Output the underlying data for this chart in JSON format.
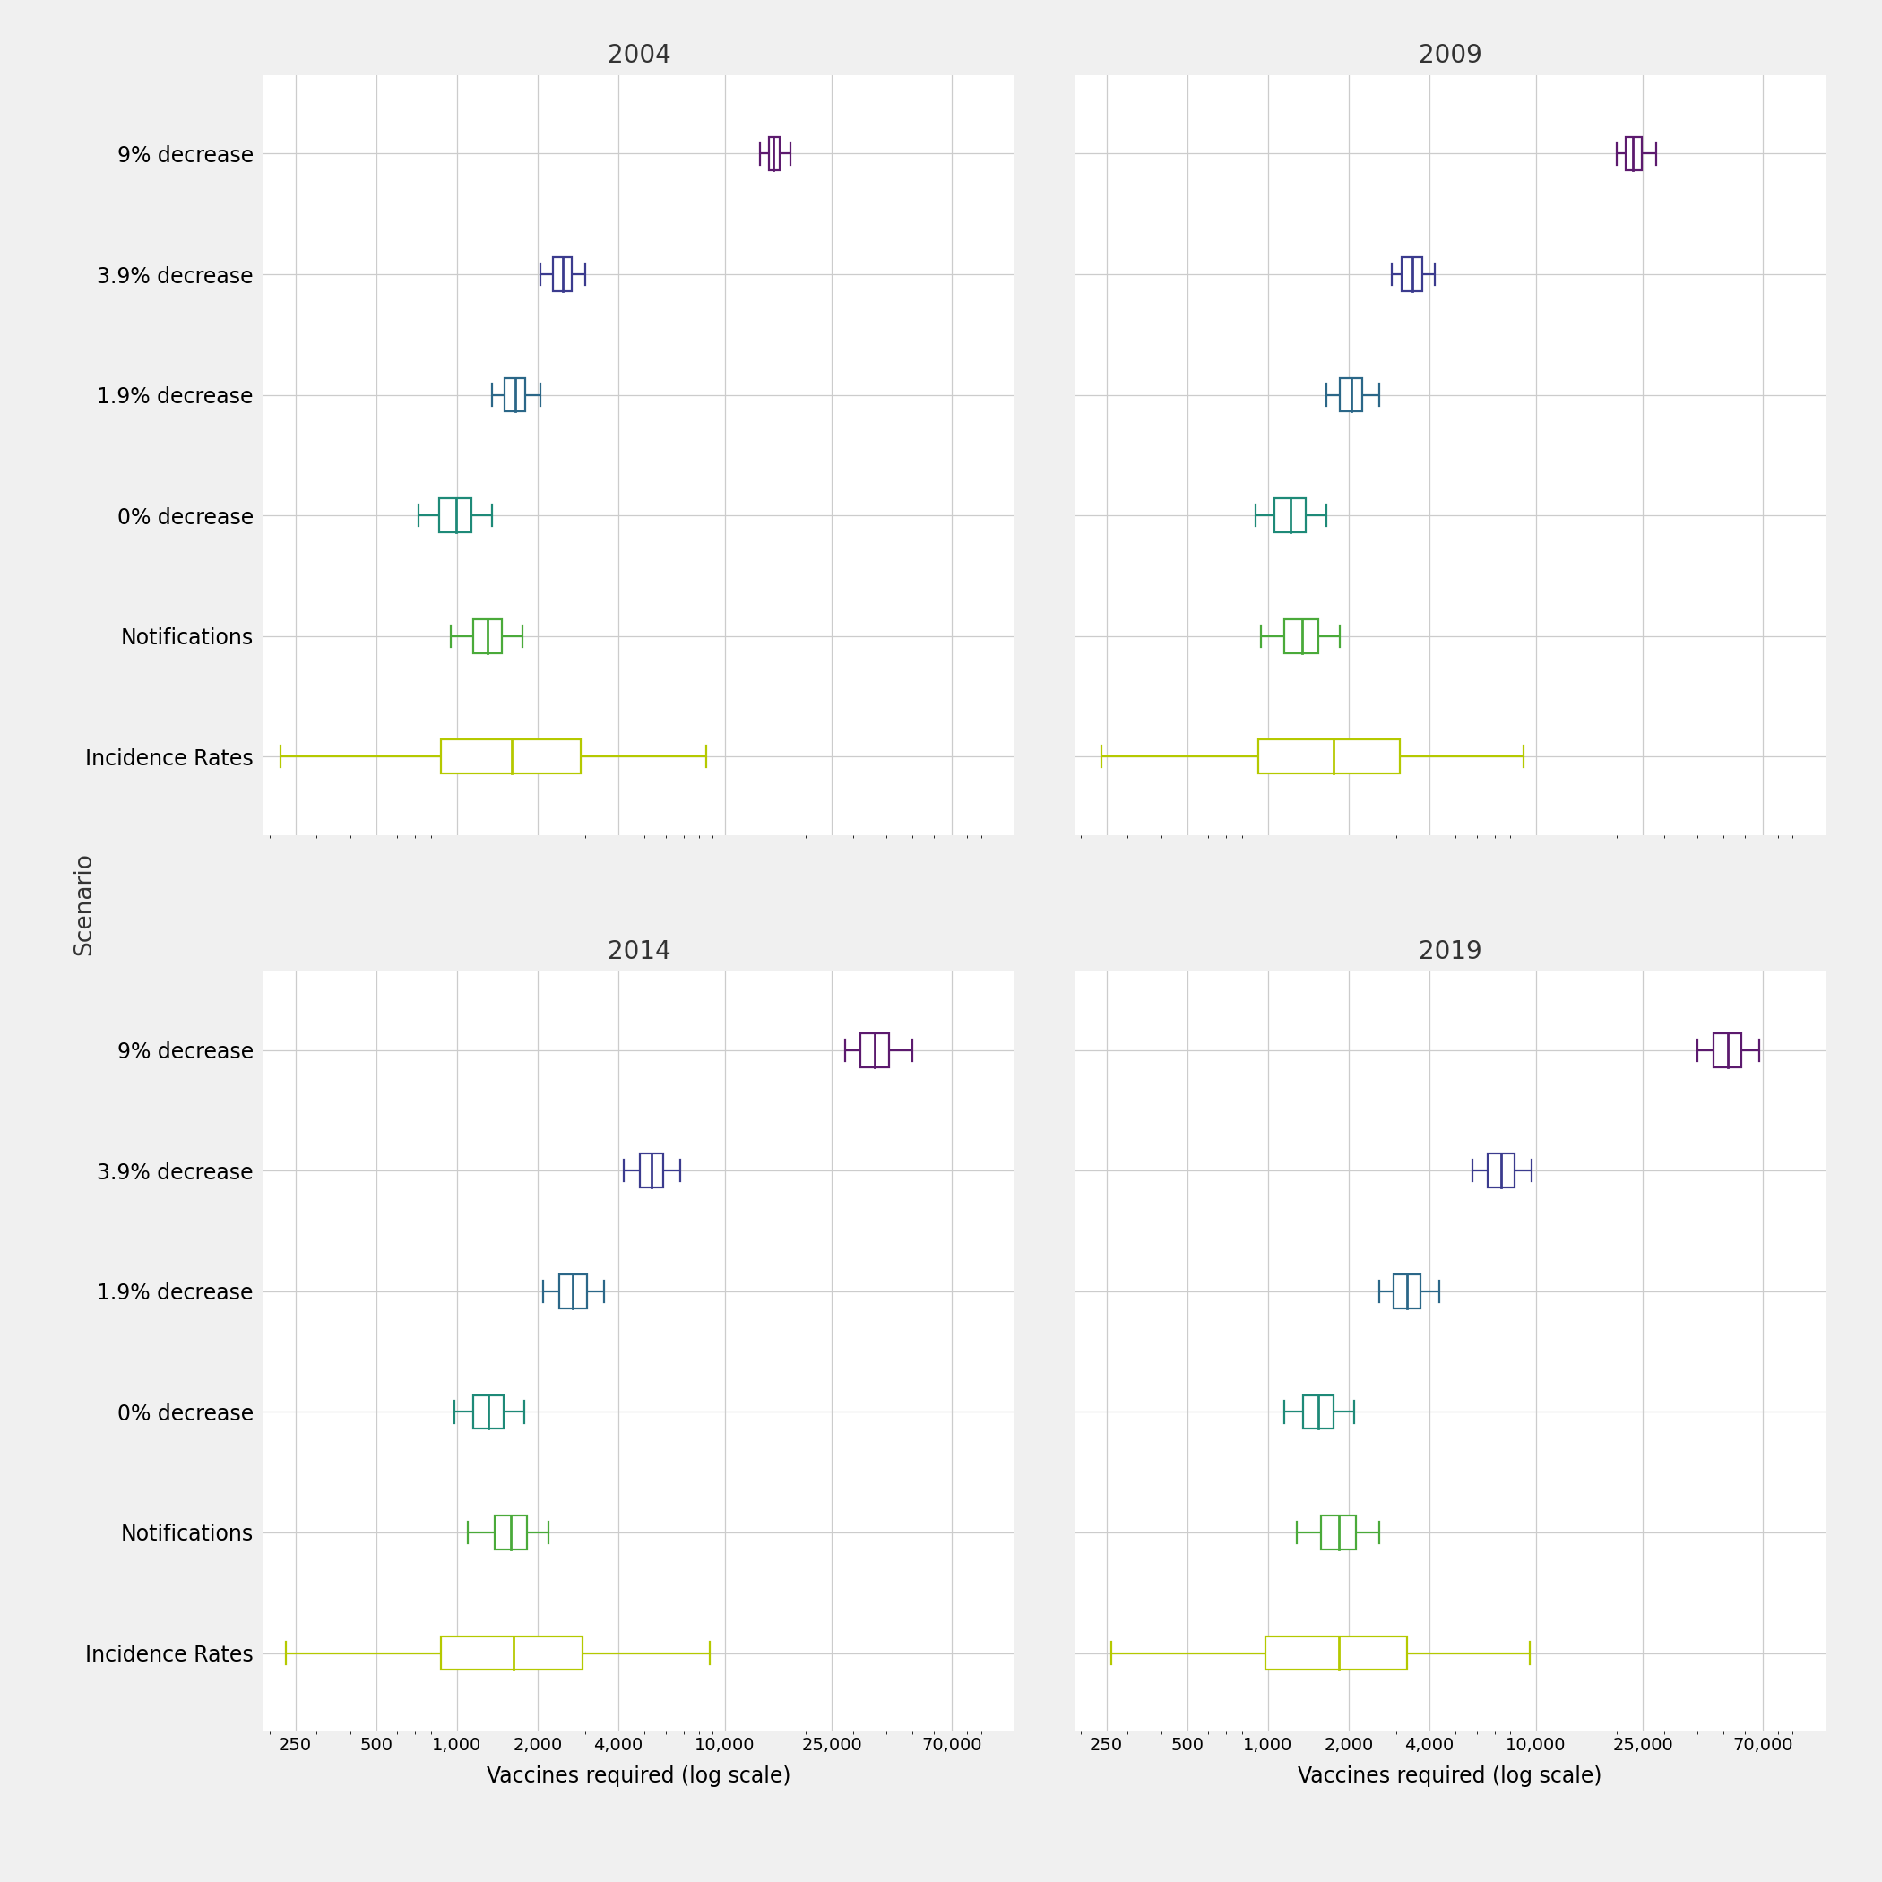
{
  "years": [
    "2004",
    "2009",
    "2014",
    "2019"
  ],
  "scenarios": [
    "9% decrease",
    "3.9% decrease",
    "1.9% decrease",
    "0% decrease",
    "Notifications",
    "Incidence Rates"
  ],
  "colors": [
    "#5c1a6e",
    "#3b3b8e",
    "#2b6788",
    "#1e8a78",
    "#4aaa3a",
    "#b5c900"
  ],
  "background_color": "#f0f0f0",
  "panel_background": "#ffffff",
  "grid_color": "#cccccc",
  "title_fontsize": 20,
  "label_fontsize": 17,
  "tick_fontsize": 14,
  "ylabel": "Scenario",
  "xlabel": "Vaccines required (log scale)",
  "xlim_log": [
    190,
    120000
  ],
  "xticks": [
    250,
    500,
    1000,
    2000,
    4000,
    10000,
    25000,
    70000
  ],
  "xticklabels": [
    "250",
    "500",
    "1,000",
    "2,000",
    "4,000",
    "10,000",
    "25,000",
    "70,000"
  ],
  "boxplot_data": {
    "2004": {
      "9% decrease": {
        "whislo": 13500,
        "q1": 14600,
        "med": 15200,
        "q3": 16000,
        "whishi": 17500
      },
      "3.9% decrease": {
        "whislo": 2050,
        "q1": 2280,
        "med": 2480,
        "q3": 2680,
        "whishi": 3000
      },
      "1.9% decrease": {
        "whislo": 1350,
        "q1": 1500,
        "med": 1650,
        "q3": 1800,
        "whishi": 2050
      },
      "0% decrease": {
        "whislo": 720,
        "q1": 860,
        "med": 990,
        "q3": 1130,
        "whishi": 1350
      },
      "Notifications": {
        "whislo": 950,
        "q1": 1150,
        "med": 1300,
        "q3": 1470,
        "whishi": 1750
      },
      "Incidence Rates": {
        "whislo": 220,
        "q1": 870,
        "med": 1600,
        "q3": 2900,
        "whishi": 8500
      }
    },
    "2009": {
      "9% decrease": {
        "whislo": 20000,
        "q1": 21500,
        "med": 23000,
        "q3": 24800,
        "whishi": 28000
      },
      "3.9% decrease": {
        "whislo": 2900,
        "q1": 3150,
        "med": 3450,
        "q3": 3750,
        "whishi": 4200
      },
      "1.9% decrease": {
        "whislo": 1650,
        "q1": 1850,
        "med": 2050,
        "q3": 2250,
        "whishi": 2600
      },
      "0% decrease": {
        "whislo": 900,
        "q1": 1060,
        "med": 1210,
        "q3": 1380,
        "whishi": 1650
      },
      "Notifications": {
        "whislo": 940,
        "q1": 1150,
        "med": 1340,
        "q3": 1540,
        "whishi": 1850
      },
      "Incidence Rates": {
        "whislo": 240,
        "q1": 920,
        "med": 1750,
        "q3": 3100,
        "whishi": 9000
      }
    },
    "2014": {
      "9% decrease": {
        "whislo": 28000,
        "q1": 32000,
        "med": 36000,
        "q3": 41000,
        "whishi": 50000
      },
      "3.9% decrease": {
        "whislo": 4200,
        "q1": 4800,
        "med": 5300,
        "q3": 5900,
        "whishi": 6800
      },
      "1.9% decrease": {
        "whislo": 2100,
        "q1": 2400,
        "med": 2700,
        "q3": 3050,
        "whishi": 3550
      },
      "0% decrease": {
        "whislo": 980,
        "q1": 1150,
        "med": 1310,
        "q3": 1490,
        "whishi": 1780
      },
      "Notifications": {
        "whislo": 1100,
        "q1": 1380,
        "med": 1590,
        "q3": 1830,
        "whishi": 2200
      },
      "Incidence Rates": {
        "whislo": 230,
        "q1": 870,
        "med": 1630,
        "q3": 2950,
        "whishi": 8800
      }
    },
    "2019": {
      "9% decrease": {
        "whislo": 40000,
        "q1": 46000,
        "med": 52000,
        "q3": 58000,
        "whishi": 68000
      },
      "3.9% decrease": {
        "whislo": 5800,
        "q1": 6600,
        "med": 7400,
        "q3": 8300,
        "whishi": 9600
      },
      "1.9% decrease": {
        "whislo": 2600,
        "q1": 2950,
        "med": 3300,
        "q3": 3700,
        "whishi": 4350
      },
      "0% decrease": {
        "whislo": 1150,
        "q1": 1350,
        "med": 1540,
        "q3": 1760,
        "whishi": 2100
      },
      "Notifications": {
        "whislo": 1280,
        "q1": 1580,
        "med": 1840,
        "q3": 2130,
        "whishi": 2600
      },
      "Incidence Rates": {
        "whislo": 260,
        "q1": 980,
        "med": 1840,
        "q3": 3300,
        "whishi": 9500
      }
    }
  }
}
